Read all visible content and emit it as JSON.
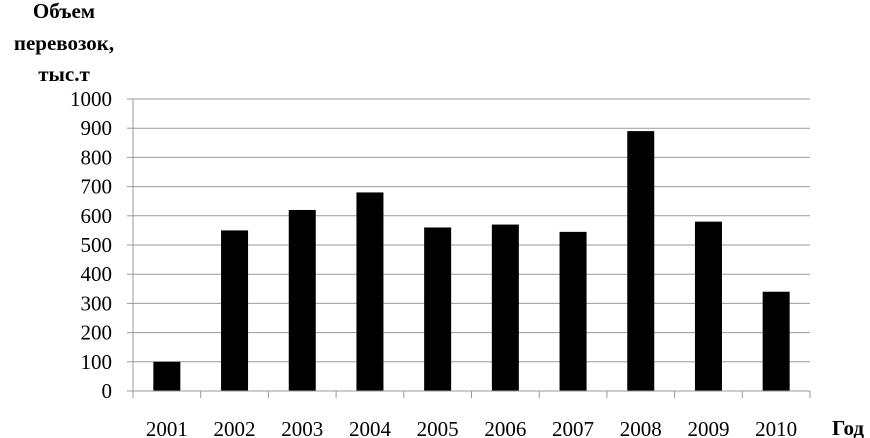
{
  "chart_data": {
    "type": "bar",
    "ylabel_lines": [
      "Объем",
      "перевозок,",
      "тыс.т"
    ],
    "xlabel": "Год",
    "categories": [
      "2001",
      "2002",
      "2003",
      "2004",
      "2005",
      "2006",
      "2007",
      "2008",
      "2009",
      "2010"
    ],
    "values": [
      100,
      550,
      620,
      680,
      560,
      570,
      545,
      890,
      580,
      340
    ],
    "ylim": [
      0,
      1000
    ],
    "yticks": [
      "0",
      "100",
      "200",
      "300",
      "400",
      "500",
      "600",
      "700",
      "800",
      "900",
      "1000"
    ],
    "grid": true,
    "legend": "none",
    "bar_color": "#000000",
    "grid_color": "#9a9a9a"
  }
}
